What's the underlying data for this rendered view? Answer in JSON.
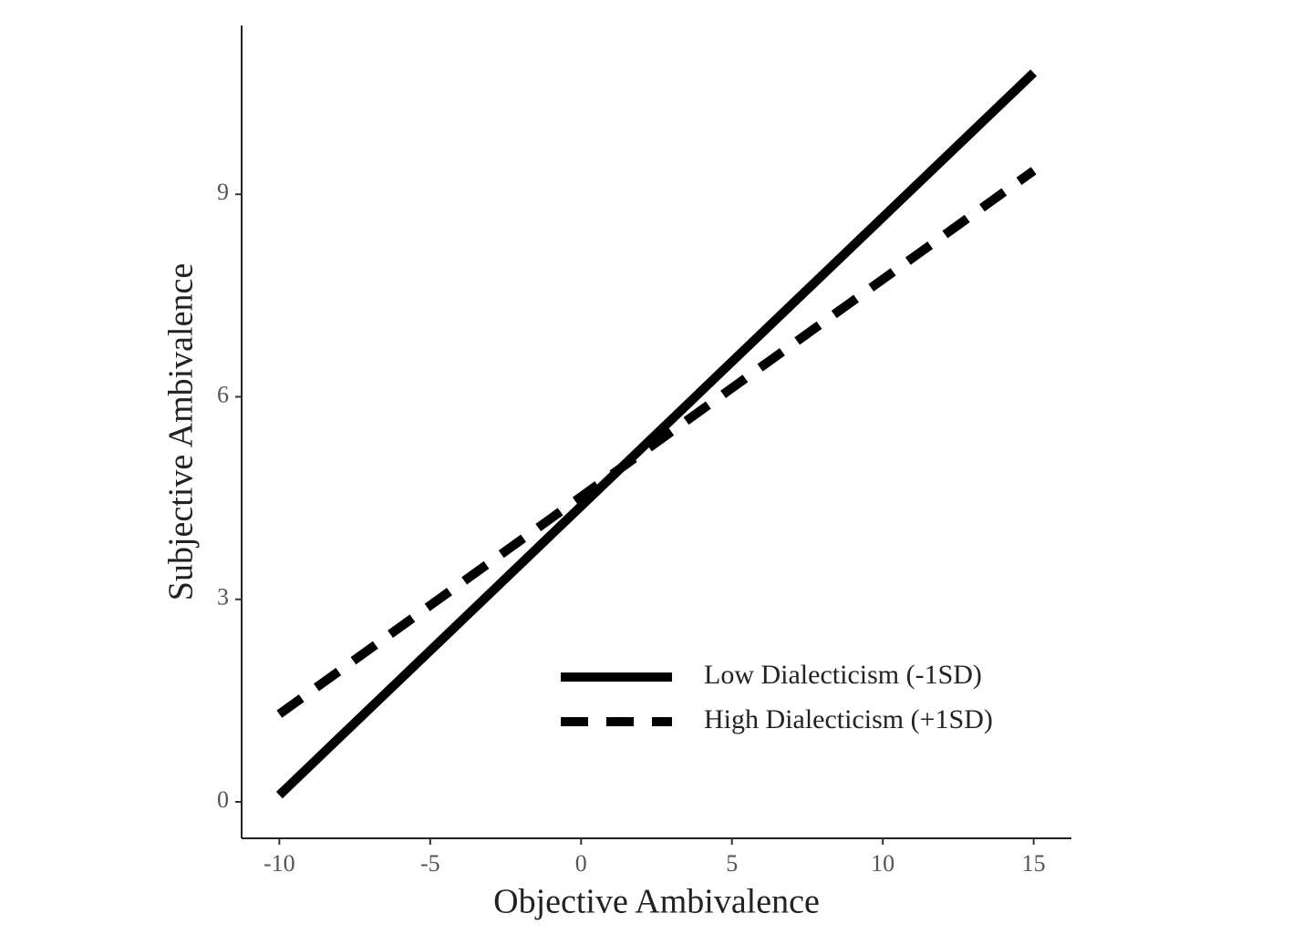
{
  "chart_data": {
    "type": "line",
    "x_label": "Objective Ambivalence",
    "y_label": "Subjective Ambivalence",
    "x": [
      -10,
      15
    ],
    "series": [
      {
        "name": "Low Dialecticism (-1SD)",
        "color": "#000000",
        "linestyle": "solid",
        "values": [
          0.1,
          10.8
        ]
      },
      {
        "name": "High Dialecticism (+1SD)",
        "color": "#000000",
        "linestyle": "dashed",
        "values": [
          1.3,
          9.35
        ]
      }
    ],
    "xlim": [
      -11.25,
      16.25
    ],
    "xticks": [
      -10,
      -5,
      0,
      5,
      10,
      15
    ],
    "ylim": [
      -0.54,
      11.5
    ],
    "yticks": [
      0,
      3,
      6,
      9
    ],
    "legend": "bottom-right"
  }
}
